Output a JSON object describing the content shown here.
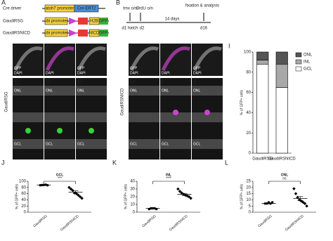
{
  "panel_labels": [
    "A",
    "B",
    "C",
    "D",
    "E",
    "C'",
    "D'",
    "E'",
    "F",
    "G",
    "H",
    "F'",
    "G'",
    "H'",
    "I",
    "J",
    "K",
    "L"
  ],
  "construct": {
    "rows": [
      {
        "name": "Cre driver",
        "parts": [
          "atoh7 promoter",
          "Cre-ERT2"
        ]
      },
      {
        "name": "GaudiRSG",
        "parts": [
          "ubi promoter",
          "H2B",
          "GFP"
        ]
      },
      {
        "name": "GaudiRSNICD",
        "parts": [
          "ubi promoter",
          "NICD",
          "GFP"
        ]
      }
    ]
  },
  "timeline": {
    "top": [
      "tmx o/n",
      "BrdU o/n",
      "fixation & analysis"
    ],
    "middle": "14 days",
    "bottom": [
      "d1 hatch",
      "d2",
      "d16"
    ]
  },
  "images": {
    "stains": [
      "DAPI",
      "GFP"
    ],
    "layers": [
      "ONL",
      "GCL"
    ],
    "groups": [
      "GaudiRSG",
      "GaudiRSNICD"
    ]
  },
  "chart_data": [
    {
      "type": "stacked_bar",
      "y_label": "% of GFP+ cells",
      "categories": [
        "GaudiRSG",
        "GaudiRSNICD"
      ],
      "series": [
        {
          "name": "GCL",
          "color": "#ffffff",
          "values": [
            88,
            65
          ]
        },
        {
          "name": "INL",
          "color": "#a8a8a8",
          "values": [
            4,
            23
          ]
        },
        {
          "name": "ONL",
          "color": "#555555",
          "values": [
            8,
            12
          ]
        }
      ],
      "ylim": [
        0,
        100
      ],
      "yticks": [
        0,
        20,
        40,
        60,
        80,
        100
      ]
    },
    {
      "type": "dot",
      "annotation": "GCL",
      "significance": "***",
      "y_label": "% of GFP+ cells",
      "categories": [
        "GaudiRSG",
        "GaudiRSNICD"
      ],
      "points": [
        [
          87,
          88,
          88,
          89,
          87
        ],
        [
          80,
          75,
          70,
          62,
          60,
          55,
          50,
          45
        ]
      ],
      "means": [
        88,
        65
      ],
      "sem": [
        0.4,
        4.5
      ],
      "ylim": [
        0,
        100
      ],
      "yticks": [
        0,
        20,
        40,
        60,
        80,
        100
      ]
    },
    {
      "type": "dot",
      "annotation": "INL",
      "significance": "****",
      "y_label": "% of GFP+ cells",
      "categories": [
        "GaudiRSG",
        "GaudiRSNICD"
      ],
      "points": [
        [
          4,
          5,
          5,
          5,
          4
        ],
        [
          30,
          27,
          25,
          23,
          22,
          21,
          20,
          18
        ]
      ],
      "means": [
        5,
        23
      ],
      "sem": [
        0.3,
        1.4
      ],
      "ylim": [
        0,
        40
      ],
      "yticks": [
        0,
        10,
        20,
        30,
        40
      ]
    },
    {
      "type": "dot",
      "annotation": "ONL",
      "significance": "ns",
      "y_label": "% of GFP+ cells",
      "categories": [
        "GaudiRSG",
        "GaudiRSNICD"
      ],
      "points": [
        [
          7,
          7,
          8,
          7,
          8
        ],
        [
          19,
          15,
          12,
          10,
          9,
          8,
          7,
          5
        ]
      ],
      "means": [
        7,
        11
      ],
      "sem": [
        0.3,
        1.6
      ],
      "ylim": [
        0,
        25
      ],
      "yticks": [
        0,
        5,
        10,
        15,
        20,
        25
      ]
    }
  ]
}
